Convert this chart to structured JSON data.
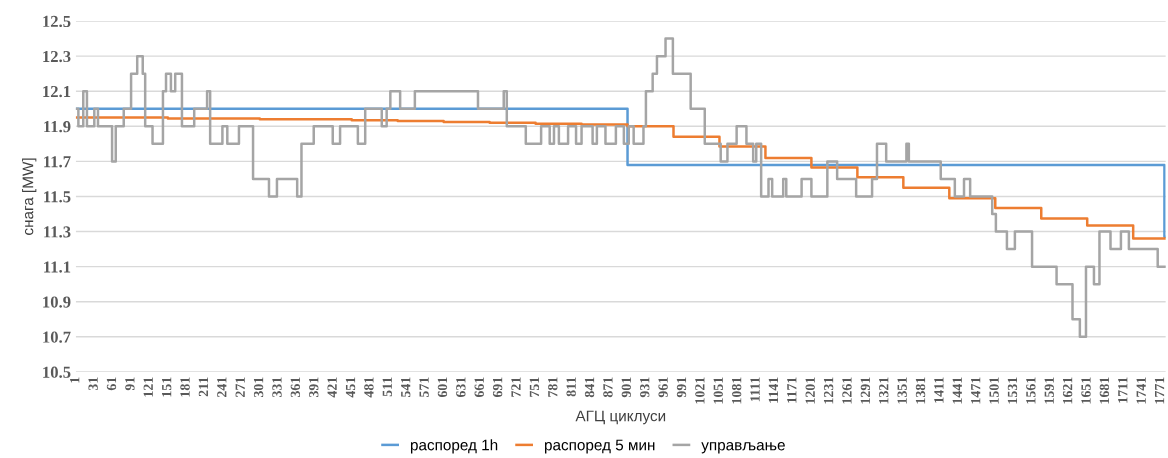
{
  "chart_data": {
    "type": "step",
    "xlabel": "АГЦ циклуси",
    "ylabel": "снага [MW]",
    "xlim": [
      1,
      1779
    ],
    "xticks": [
      1,
      31,
      61,
      91,
      121,
      151,
      181,
      211,
      241,
      271,
      301,
      331,
      361,
      391,
      421,
      451,
      481,
      511,
      541,
      571,
      601,
      631,
      661,
      691,
      721,
      751,
      781,
      811,
      841,
      871,
      901,
      931,
      961,
      991,
      1021,
      1051,
      1081,
      1111,
      1141,
      1171,
      1201,
      1231,
      1261,
      1291,
      1321,
      1351,
      1381,
      1411,
      1441,
      1471,
      1501,
      1531,
      1561,
      1591,
      1621,
      1651,
      1681,
      1711,
      1741,
      1771
    ],
    "ylim": [
      10.5,
      12.5
    ],
    "yticks": [
      10.5,
      10.7,
      10.9,
      11.1,
      11.3,
      11.5,
      11.7,
      11.9,
      12.1,
      12.3,
      12.5
    ],
    "grid": "y",
    "legend": "bottom",
    "line_style": "solid",
    "marker": "none",
    "series": [
      {
        "name": "распоред 1h",
        "color": "#5b9bd5",
        "x": [
          1,
          901,
          1777,
          1779
        ],
        "values": [
          12.0,
          11.68,
          11.27,
          11.27
        ]
      },
      {
        "name": "распоред 5 мин",
        "color": "#ed7d31",
        "x": [
          1,
          151,
          301,
          451,
          526,
          601,
          676,
          751,
          826,
          901,
          976,
          1051,
          1126,
          1201,
          1276,
          1351,
          1426,
          1501,
          1576,
          1651,
          1726,
          1779
        ],
        "values": [
          11.95,
          11.945,
          11.94,
          11.935,
          11.93,
          11.925,
          11.92,
          11.915,
          11.91,
          11.9,
          11.84,
          11.785,
          11.72,
          11.665,
          11.61,
          11.55,
          11.49,
          11.435,
          11.375,
          11.335,
          11.26,
          11.26
        ]
      },
      {
        "name": "управљање",
        "color": "#a5a5a5",
        "x": [
          1,
          5,
          13,
          19,
          31,
          37,
          60,
          66,
          79,
          91,
          101,
          110,
          114,
          126,
          143,
          148,
          156,
          163,
          174,
          194,
          215,
          220,
          240,
          248,
          267,
          290,
          316,
          329,
          362,
          369,
          389,
          420,
          432,
          461,
          473,
          500,
          508,
          514,
          530,
          554,
          657,
          699,
          704,
          735,
          760,
          774,
          781,
          789,
          804,
          817,
          826,
          844,
          851,
          865,
          882,
          895,
          903,
          911,
          927,
          931,
          942,
          949,
          963,
          975,
          1004,
          1027,
          1053,
          1064,
          1079,
          1095,
          1106,
          1111,
          1119,
          1131,
          1137,
          1155,
          1160,
          1185,
          1201,
          1227,
          1243,
          1274,
          1300,
          1308,
          1323,
          1356,
          1360,
          1412,
          1435,
          1450,
          1460,
          1496,
          1502,
          1520,
          1533,
          1561,
          1601,
          1627,
          1639,
          1649,
          1662,
          1671,
          1689,
          1706,
          1719,
          1766,
          1779
        ],
        "values": [
          12.0,
          11.9,
          12.1,
          11.9,
          12.0,
          11.9,
          11.7,
          11.9,
          12.0,
          12.2,
          12.3,
          12.2,
          11.9,
          11.8,
          12.1,
          12.2,
          12.1,
          12.2,
          11.9,
          12.0,
          12.1,
          11.8,
          11.9,
          11.8,
          11.9,
          11.6,
          11.5,
          11.6,
          11.5,
          11.8,
          11.9,
          11.8,
          11.9,
          11.8,
          12.0,
          11.9,
          12.0,
          12.1,
          12.0,
          12.1,
          12.0,
          12.1,
          11.9,
          11.8,
          11.9,
          11.8,
          11.9,
          11.8,
          11.9,
          11.8,
          11.9,
          11.8,
          11.9,
          11.8,
          11.9,
          11.8,
          11.9,
          11.8,
          11.9,
          12.1,
          12.2,
          12.3,
          12.4,
          12.2,
          12.0,
          11.8,
          11.7,
          11.8,
          11.9,
          11.8,
          11.7,
          11.8,
          11.5,
          11.6,
          11.5,
          11.6,
          11.5,
          11.6,
          11.5,
          11.7,
          11.6,
          11.5,
          11.6,
          11.8,
          11.7,
          11.8,
          11.7,
          11.6,
          11.5,
          11.6,
          11.5,
          11.4,
          11.3,
          11.2,
          11.3,
          11.1,
          11.0,
          10.8,
          10.7,
          11.1,
          11.0,
          11.3,
          11.2,
          11.3,
          11.2,
          11.1,
          11.1
        ]
      }
    ]
  }
}
